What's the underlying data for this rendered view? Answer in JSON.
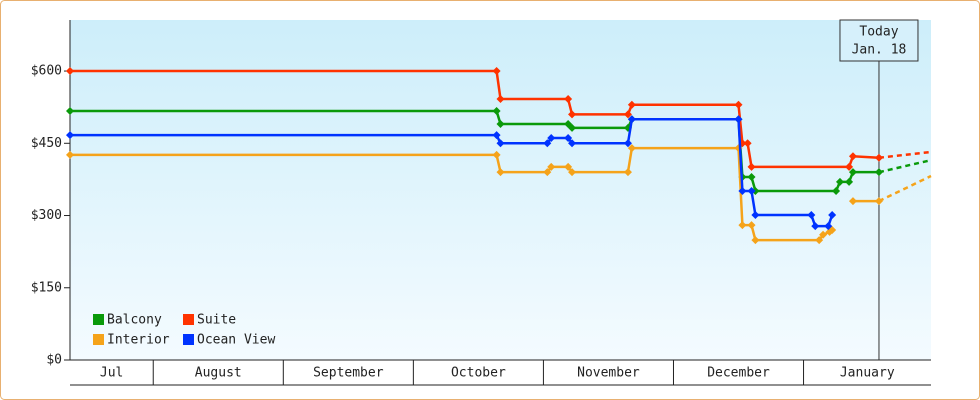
{
  "chart_data": {
    "type": "step-line",
    "categories": [
      "Jul",
      "August",
      "September",
      "October",
      "November",
      "December",
      "January"
    ],
    "xlim": [
      0.36,
      6.98
    ],
    "ylim": [
      0,
      706
    ],
    "yticks": [
      {
        "value": 0,
        "label": "$0"
      },
      {
        "value": 150,
        "label": "$150"
      },
      {
        "value": 300,
        "label": "$300"
      },
      {
        "value": 450,
        "label": "$450"
      },
      {
        "value": 600,
        "label": "$600"
      }
    ],
    "legend": "bottom-left",
    "today_marker": {
      "x": 6.58,
      "label_lines": [
        "Today",
        "Jan. 18"
      ]
    },
    "series": [
      {
        "name": "Balcony",
        "color": "#0a9a0a",
        "x": [
          0.36,
          3.64,
          3.67,
          4.19,
          4.22,
          4.65,
          4.68,
          5.5,
          5.53,
          5.6,
          5.63,
          6.25,
          6.28,
          6.35,
          6.38,
          6.58
        ],
        "values": [
          517,
          517,
          490,
          490,
          482,
          482,
          500,
          500,
          380,
          380,
          351,
          351,
          370,
          370,
          390,
          390
        ],
        "forecast": {
          "x": [
            6.58,
            6.98
          ],
          "values": [
            390,
            415
          ]
        }
      },
      {
        "name": "Suite",
        "color": "#ff3300",
        "x": [
          0.36,
          3.64,
          3.67,
          4.19,
          4.22,
          4.65,
          4.68,
          5.5,
          5.53,
          5.57,
          5.6,
          6.35,
          6.38,
          6.58
        ],
        "values": [
          600,
          600,
          542,
          542,
          510,
          510,
          530,
          530,
          450,
          450,
          401,
          401,
          423,
          420
        ],
        "forecast": {
          "x": [
            6.58,
            6.98
          ],
          "values": [
            420,
            432
          ]
        }
      },
      {
        "name": "Interior",
        "color": "#f5a31a",
        "x": [
          0.36,
          3.64,
          3.67,
          4.03,
          4.06,
          4.19,
          4.22,
          4.65,
          4.68,
          5.5,
          5.53,
          5.6,
          5.63,
          6.12,
          6.15,
          6.2,
          6.22,
          6.25,
          6.38,
          6.58
        ],
        "values": [
          426,
          426,
          390,
          390,
          401,
          401,
          390,
          390,
          440,
          440,
          280,
          280,
          249,
          249,
          260,
          266,
          270,
          null,
          330,
          330
        ],
        "forecast": {
          "x": [
            6.58,
            6.98
          ],
          "values": [
            330,
            382
          ]
        }
      },
      {
        "name": "Ocean View",
        "color": "#0033ff",
        "x": [
          0.36,
          3.64,
          3.67,
          4.03,
          4.06,
          4.19,
          4.22,
          4.65,
          4.68,
          5.5,
          5.53,
          5.6,
          5.63,
          6.06,
          6.09,
          6.19,
          6.22
        ],
        "values": [
          467,
          467,
          450,
          450,
          461,
          461,
          450,
          450,
          500,
          500,
          351,
          351,
          301,
          301,
          278,
          278,
          301
        ]
      }
    ]
  }
}
